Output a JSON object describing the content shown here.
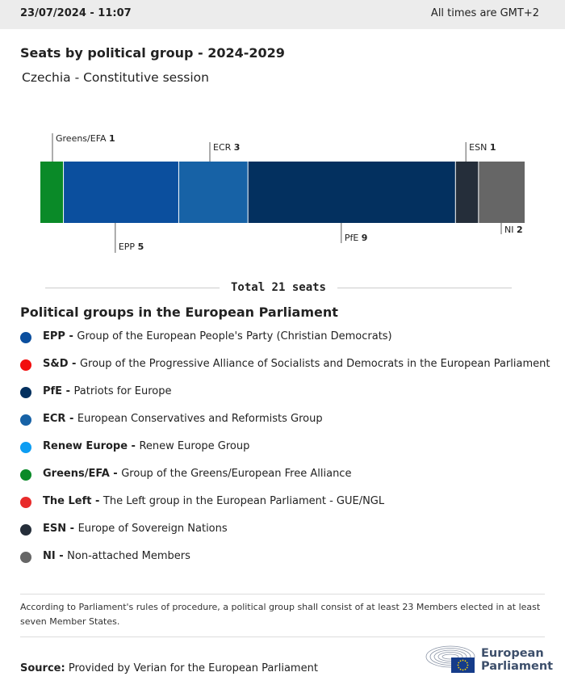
{
  "header": {
    "date": "23/07/2024 - 11:07",
    "timezone": "All times are GMT+2"
  },
  "title": "Seats by political group - 2024-2029",
  "subtitle": "Czechia - Constitutive session",
  "chart_data": {
    "type": "bar",
    "orientation": "stacked-horizontal",
    "categories": [
      "Greens/EFA",
      "EPP",
      "ECR",
      "PfE",
      "ESN",
      "NI"
    ],
    "values": [
      1,
      5,
      3,
      9,
      1,
      2
    ],
    "colors": [
      "#0a8a28",
      "#0b4f9e",
      "#1762a6",
      "#03305f",
      "#252e3a",
      "#666666"
    ],
    "label_side": [
      "top",
      "bottom",
      "top",
      "bottom",
      "top",
      "bottom"
    ],
    "total": 21
  },
  "total_label": "Total 21 seats",
  "legend_title": "Political groups in the European Parliament",
  "legend": [
    {
      "abbr": "EPP -",
      "name": "Group of the European People's Party (Christian Democrats)",
      "color": "#0b4f9e"
    },
    {
      "abbr": "S&D -",
      "name": "Group of the Progressive Alliance of Socialists and Democrats in the European Parliament",
      "color": "#f20d0d"
    },
    {
      "abbr": "PfE -",
      "name": "Patriots for Europe",
      "color": "#03305f"
    },
    {
      "abbr": "ECR -",
      "name": "European Conservatives and Reformists Group",
      "color": "#1762a6"
    },
    {
      "abbr": "Renew Europe -",
      "name": "Renew Europe Group",
      "color": "#0d9df2"
    },
    {
      "abbr": "Greens/EFA -",
      "name": "Group of the Greens/European Free Alliance",
      "color": "#0a8a28"
    },
    {
      "abbr": "The Left -",
      "name": "The Left group in the European Parliament - GUE/NGL",
      "color": "#e82b2b"
    },
    {
      "abbr": "ESN -",
      "name": "Europe of Sovereign Nations",
      "color": "#252e3a"
    },
    {
      "abbr": "NI -",
      "name": "Non-attached Members",
      "color": "#666666"
    }
  ],
  "note": "According to Parliament's rules of procedure, a political group shall consist of at least 23 Members elected in at least seven Member States.",
  "source": {
    "label": "Source:",
    "text": "Provided by Verian for the European Parliament"
  },
  "logo": {
    "line1": "European",
    "line2": "Parliament",
    "icon": "european-parliament-hemicycle-logo"
  }
}
